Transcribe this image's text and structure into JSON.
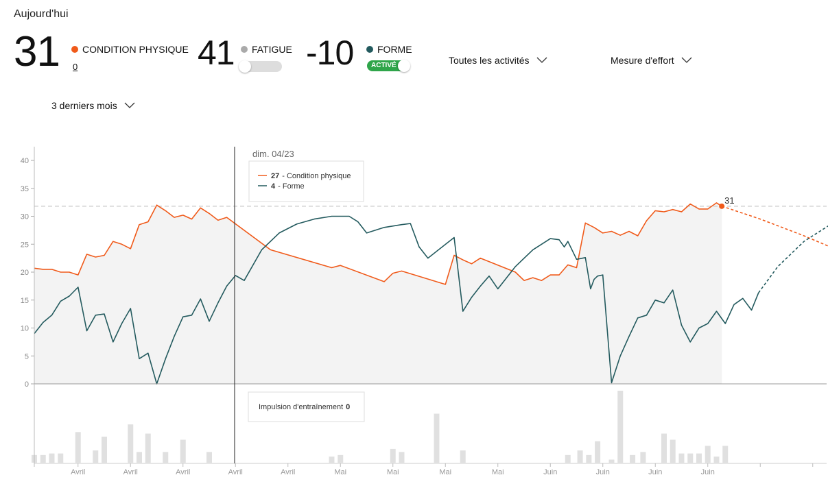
{
  "header": {
    "today_label": "Aujourd'hui",
    "fitness": {
      "value": "31",
      "label": "CONDITION PHYSIQUE",
      "sub_link": "0"
    },
    "fatigue": {
      "value": "41",
      "label": "FATIGUE"
    },
    "form": {
      "value": "-10",
      "label": "FORME",
      "toggle_label": "ACTIVÉ"
    },
    "dropdowns": {
      "activities": "Toutes les activités",
      "effort": "Mesure d'effort",
      "period": "3 derniers mois"
    }
  },
  "colors": {
    "fitness": "#f05a1a",
    "fatigue": "#aaaaaa",
    "form": "#235a5e",
    "toggle_on": "#2fa54a",
    "area": "#f3f3f3",
    "bar": "#e0e0e0"
  },
  "tooltip": {
    "date": "dim. 04/23",
    "fitness_value": "27",
    "fitness_label": "- Condition physique",
    "form_value": "4",
    "form_label": "- Forme"
  },
  "impulse_tooltip": {
    "label": "Impulsion d'entraînement",
    "value": "0"
  },
  "chart_data": {
    "type": "line",
    "ylim": [
      0,
      42
    ],
    "y_ticks": [
      "0",
      "5",
      "10",
      "15",
      "20",
      "25",
      "30",
      "35",
      "40"
    ],
    "x_tick_labels": [
      "Avril",
      "Avril",
      "Avril",
      "Avril",
      "Avril",
      "Mai",
      "Mai",
      "Mai",
      "Mai",
      "Juin",
      "Juin",
      "Juin",
      "Juin"
    ],
    "reference_line": 31.8,
    "end_label": "31",
    "series": [
      {
        "key": "fitness",
        "name": "Condition physique",
        "points": [
          [
            0,
            20.7
          ],
          [
            5,
            20.5
          ],
          [
            10,
            20.5
          ],
          [
            15,
            20
          ],
          [
            20,
            20
          ],
          [
            25,
            19.5
          ],
          [
            30,
            23.2
          ],
          [
            35,
            22.7
          ],
          [
            40,
            23
          ],
          [
            45,
            25.5
          ],
          [
            50,
            25
          ],
          [
            55,
            24.2
          ],
          [
            60,
            28.5
          ],
          [
            65,
            29
          ],
          [
            70,
            32
          ],
          [
            75,
            31
          ],
          [
            80,
            29.8
          ],
          [
            85,
            30.2
          ],
          [
            90,
            29.5
          ],
          [
            95,
            31.5
          ],
          [
            100,
            30.5
          ],
          [
            105,
            29.3
          ],
          [
            110,
            29.8
          ],
          [
            135,
            24
          ],
          [
            170,
            20.8
          ],
          [
            175,
            21.2
          ],
          [
            200,
            18.3
          ],
          [
            205,
            19.8
          ],
          [
            210,
            20.2
          ],
          [
            235,
            17.8
          ],
          [
            240,
            23
          ],
          [
            245,
            22.2
          ],
          [
            250,
            21.5
          ],
          [
            255,
            22.5
          ],
          [
            275,
            20
          ],
          [
            280,
            18.5
          ],
          [
            285,
            19
          ],
          [
            290,
            18.5
          ],
          [
            295,
            19.5
          ],
          [
            300,
            19.5
          ],
          [
            305,
            21.3
          ],
          [
            310,
            20.8
          ],
          [
            315,
            28.8
          ],
          [
            320,
            28
          ],
          [
            325,
            27
          ],
          [
            330,
            27.3
          ],
          [
            335,
            26.6
          ],
          [
            340,
            27.3
          ],
          [
            345,
            26.5
          ],
          [
            350,
            29.2
          ],
          [
            355,
            31
          ],
          [
            360,
            30.8
          ],
          [
            365,
            31.2
          ],
          [
            370,
            30.8
          ],
          [
            375,
            32.2
          ],
          [
            380,
            31.3
          ],
          [
            385,
            31.3
          ],
          [
            390,
            32.4
          ],
          [
            393,
            31.8
          ]
        ]
      },
      {
        "key": "form",
        "name": "Forme",
        "points": [
          [
            0,
            9
          ],
          [
            5,
            11
          ],
          [
            10,
            12.3
          ],
          [
            15,
            14.8
          ],
          [
            20,
            15.7
          ],
          [
            25,
            17.3
          ],
          [
            30,
            9.5
          ],
          [
            35,
            12.3
          ],
          [
            40,
            12.5
          ],
          [
            45,
            7.5
          ],
          [
            50,
            10.8
          ],
          [
            55,
            13.5
          ],
          [
            60,
            4.5
          ],
          [
            65,
            5.5
          ],
          [
            70,
            0
          ],
          [
            75,
            4.5
          ],
          [
            80,
            8.5
          ],
          [
            85,
            12
          ],
          [
            90,
            12.3
          ],
          [
            95,
            15.2
          ],
          [
            100,
            11.2
          ],
          [
            105,
            14.5
          ],
          [
            110,
            17.5
          ],
          [
            115,
            19.4
          ],
          [
            120,
            18.5
          ],
          [
            130,
            24
          ],
          [
            140,
            27
          ],
          [
            150,
            28.6
          ],
          [
            160,
            29.5
          ],
          [
            170,
            30
          ],
          [
            180,
            30
          ],
          [
            185,
            29
          ],
          [
            190,
            27
          ],
          [
            200,
            28
          ],
          [
            210,
            28.5
          ],
          [
            215,
            28.7
          ],
          [
            220,
            24.5
          ],
          [
            225,
            22.5
          ],
          [
            240,
            26.2
          ],
          [
            245,
            13
          ],
          [
            250,
            15.5
          ],
          [
            255,
            17.5
          ],
          [
            260,
            19.3
          ],
          [
            265,
            17
          ],
          [
            275,
            21
          ],
          [
            285,
            24
          ],
          [
            290,
            25
          ],
          [
            295,
            26
          ],
          [
            300,
            25.8
          ],
          [
            303,
            24.5
          ],
          [
            305,
            25.5
          ],
          [
            310,
            22.3
          ],
          [
            315,
            22.6
          ],
          [
            318,
            17
          ],
          [
            320,
            18.7
          ],
          [
            322,
            19.3
          ],
          [
            325,
            19.5
          ],
          [
            330,
            0.2
          ],
          [
            335,
            5
          ],
          [
            340,
            8.5
          ],
          [
            345,
            11.8
          ],
          [
            350,
            12.3
          ],
          [
            355,
            15
          ],
          [
            360,
            14.5
          ],
          [
            365,
            16.8
          ],
          [
            370,
            10.5
          ],
          [
            375,
            7.5
          ],
          [
            380,
            10
          ],
          [
            385,
            10.8
          ],
          [
            390,
            13
          ],
          [
            395,
            10.8
          ],
          [
            400,
            14.2
          ],
          [
            405,
            15.3
          ],
          [
            410,
            13.2
          ],
          [
            414,
            16.3
          ]
        ]
      }
    ],
    "projections": [
      {
        "key": "fitness",
        "points": [
          [
            393,
            31.8
          ],
          [
            415,
            29.5
          ],
          [
            440,
            26.5
          ],
          [
            468,
            22.8
          ]
        ]
      },
      {
        "key": "form",
        "points": [
          [
            414,
            16.3
          ],
          [
            425,
            21
          ],
          [
            440,
            25.5
          ],
          [
            455,
            28.5
          ],
          [
            468,
            30.2
          ]
        ]
      }
    ],
    "bars": [
      [
        0,
        0.05
      ],
      [
        5,
        0.05
      ],
      [
        10,
        0.06
      ],
      [
        15,
        0.06
      ],
      [
        25,
        0.2
      ],
      [
        35,
        0.08
      ],
      [
        40,
        0.17
      ],
      [
        55,
        0.25
      ],
      [
        60,
        0.07
      ],
      [
        65,
        0.19
      ],
      [
        75,
        0.07
      ],
      [
        85,
        0.15
      ],
      [
        100,
        0.07
      ],
      [
        170,
        0.04
      ],
      [
        175,
        0.05
      ],
      [
        205,
        0.09
      ],
      [
        210,
        0.07
      ],
      [
        230,
        0.32
      ],
      [
        245,
        0.08
      ],
      [
        305,
        0.05
      ],
      [
        312,
        0.08
      ],
      [
        317,
        0.05
      ],
      [
        322,
        0.14
      ],
      [
        330,
        0.02
      ],
      [
        335,
        0.47
      ],
      [
        342,
        0.05
      ],
      [
        348,
        0.07
      ],
      [
        360,
        0.19
      ],
      [
        365,
        0.15
      ],
      [
        370,
        0.06
      ],
      [
        375,
        0.06
      ],
      [
        380,
        0.06
      ],
      [
        385,
        0.11
      ],
      [
        390,
        0.04
      ],
      [
        395,
        0.11
      ]
    ]
  }
}
